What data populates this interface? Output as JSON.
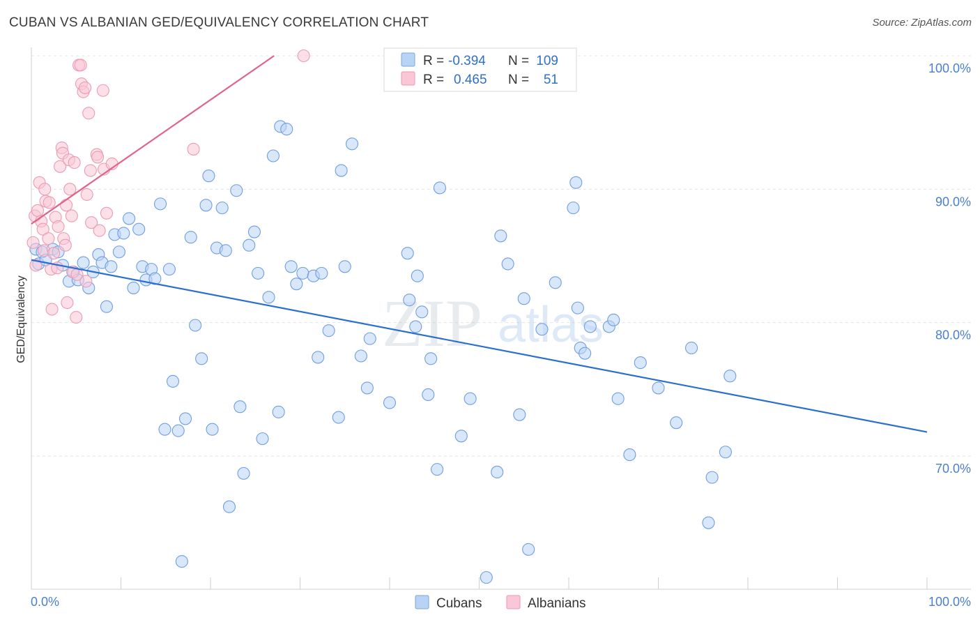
{
  "title": "CUBAN VS ALBANIAN GED/EQUIVALENCY CORRELATION CHART",
  "source": "Source: ZipAtlas.com",
  "watermark": {
    "zip": "ZIP",
    "atlas": "atlas"
  },
  "legend": {
    "r_label": "R =",
    "n_label": "N =",
    "rows": [
      {
        "name": "Cubans",
        "r": "-0.394",
        "n": "109",
        "fill": "#b9d3f5",
        "stroke": "#7aa6e0"
      },
      {
        "name": "Albanians",
        "r": "0.465",
        "n": "51",
        "fill": "#f9c7d6",
        "stroke": "#ec9ab3"
      }
    ]
  },
  "chart_data": {
    "type": "scatter",
    "title": "CUBAN VS ALBANIAN GED/EQUIVALENCY CORRELATION CHART",
    "xlabel": "",
    "ylabel": "GED/Equivalency",
    "xlim": [
      0,
      100
    ],
    "ylim": [
      60.5,
      101
    ],
    "x_tick_labels": [
      "0.0%",
      "100.0%"
    ],
    "y_ticks": [
      70,
      80,
      90,
      100
    ],
    "y_tick_labels": [
      "70.0%",
      "80.0%",
      "90.0%",
      "100.0%"
    ],
    "grid": true,
    "series": [
      {
        "name": "Cubans",
        "color": "#6f9ee0",
        "fill": "#b9d3f5",
        "trend": {
          "x": [
            0,
            100
          ],
          "y": [
            84.7,
            71.8
          ],
          "color": "#2a6fd0"
        },
        "points": [
          [
            0.5,
            85.5
          ],
          [
            0.8,
            84.4
          ],
          [
            1.2,
            85.3
          ],
          [
            1.6,
            84.7
          ],
          [
            2.4,
            85.5
          ],
          [
            3.0,
            85.3
          ],
          [
            3.5,
            84.3
          ],
          [
            4.2,
            83.1
          ],
          [
            4.7,
            83.8
          ],
          [
            5.2,
            83.2
          ],
          [
            5.8,
            84.5
          ],
          [
            6.4,
            82.6
          ],
          [
            6.9,
            83.8
          ],
          [
            7.5,
            85.1
          ],
          [
            7.9,
            84.5
          ],
          [
            8.4,
            81.2
          ],
          [
            8.9,
            84.2
          ],
          [
            9.3,
            86.6
          ],
          [
            9.8,
            85.3
          ],
          [
            10.3,
            86.7
          ],
          [
            10.9,
            87.8
          ],
          [
            11.4,
            82.6
          ],
          [
            12.0,
            87.0
          ],
          [
            12.4,
            84.2
          ],
          [
            12.8,
            83.2
          ],
          [
            13.4,
            84.0
          ],
          [
            13.8,
            83.3
          ],
          [
            14.4,
            88.9
          ],
          [
            14.9,
            72.0
          ],
          [
            15.4,
            84.0
          ],
          [
            15.8,
            75.6
          ],
          [
            16.4,
            71.9
          ],
          [
            16.8,
            62.1
          ],
          [
            17.2,
            72.8
          ],
          [
            17.8,
            86.4
          ],
          [
            18.3,
            79.8
          ],
          [
            19.0,
            77.3
          ],
          [
            19.5,
            88.8
          ],
          [
            19.8,
            91.0
          ],
          [
            20.2,
            72.0
          ],
          [
            20.7,
            85.6
          ],
          [
            21.3,
            88.6
          ],
          [
            21.7,
            85.4
          ],
          [
            22.1,
            66.2
          ],
          [
            22.9,
            89.9
          ],
          [
            23.3,
            73.7
          ],
          [
            23.7,
            68.7
          ],
          [
            24.3,
            85.8
          ],
          [
            24.9,
            86.8
          ],
          [
            25.3,
            83.7
          ],
          [
            25.8,
            71.3
          ],
          [
            26.5,
            81.9
          ],
          [
            27.0,
            92.5
          ],
          [
            27.6,
            73.3
          ],
          [
            27.8,
            94.7
          ],
          [
            28.5,
            94.5
          ],
          [
            29.0,
            84.2
          ],
          [
            29.6,
            82.9
          ],
          [
            30.3,
            83.7
          ],
          [
            31.5,
            83.5
          ],
          [
            32.0,
            77.4
          ],
          [
            32.4,
            83.7
          ],
          [
            33.2,
            79.4
          ],
          [
            34.3,
            72.9
          ],
          [
            34.6,
            91.4
          ],
          [
            35.0,
            84.2
          ],
          [
            35.8,
            93.4
          ],
          [
            36.8,
            77.5
          ],
          [
            37.5,
            75.1
          ],
          [
            37.8,
            78.8
          ],
          [
            40.0,
            74.0
          ],
          [
            42.0,
            85.2
          ],
          [
            42.2,
            81.7
          ],
          [
            42.9,
            79.7
          ],
          [
            43.1,
            83.5
          ],
          [
            43.6,
            80.8
          ],
          [
            44.3,
            74.6
          ],
          [
            44.6,
            77.3
          ],
          [
            45.3,
            69.0
          ],
          [
            45.6,
            90.1
          ],
          [
            48.0,
            71.5
          ],
          [
            49.0,
            74.3
          ],
          [
            52.0,
            68.8
          ],
          [
            52.4,
            86.5
          ],
          [
            53.2,
            84.4
          ],
          [
            54.5,
            73.1
          ],
          [
            55.0,
            81.8
          ],
          [
            55.5,
            63.0
          ],
          [
            57.0,
            79.5
          ],
          [
            58.5,
            83.0
          ],
          [
            60.5,
            88.6
          ],
          [
            60.8,
            90.5
          ],
          [
            61.0,
            81.1
          ],
          [
            61.3,
            78.1
          ],
          [
            61.8,
            77.7
          ],
          [
            62.4,
            79.7
          ],
          [
            64.5,
            79.7
          ],
          [
            65.0,
            80.2
          ],
          [
            65.5,
            74.3
          ],
          [
            66.8,
            70.1
          ],
          [
            68.0,
            77.0
          ],
          [
            70.0,
            75.1
          ],
          [
            72.0,
            72.5
          ],
          [
            73.7,
            78.1
          ],
          [
            75.6,
            65.0
          ],
          [
            76.0,
            68.4
          ],
          [
            77.5,
            70.3
          ],
          [
            78.0,
            76.0
          ],
          [
            50.8,
            60.9
          ]
        ]
      },
      {
        "name": "Albanians",
        "color": "#ec9ab3",
        "fill": "#f9c7d6",
        "trend": {
          "x": [
            0,
            27.1
          ],
          "y": [
            87.4,
            100.0
          ],
          "color": "#e0638c"
        },
        "points": [
          [
            0.2,
            86.0
          ],
          [
            0.4,
            88.0
          ],
          [
            0.5,
            84.3
          ],
          [
            0.7,
            88.4
          ],
          [
            0.9,
            90.5
          ],
          [
            1.1,
            87.6
          ],
          [
            1.3,
            87.0
          ],
          [
            1.4,
            85.4
          ],
          [
            1.5,
            90.0
          ],
          [
            1.6,
            89.1
          ],
          [
            1.9,
            86.3
          ],
          [
            2.0,
            89.0
          ],
          [
            2.2,
            84.0
          ],
          [
            2.3,
            81.0
          ],
          [
            2.5,
            85.2
          ],
          [
            2.7,
            87.9
          ],
          [
            2.9,
            84.1
          ],
          [
            3.0,
            87.2
          ],
          [
            3.2,
            91.7
          ],
          [
            3.4,
            93.1
          ],
          [
            3.5,
            92.7
          ],
          [
            3.6,
            86.3
          ],
          [
            3.8,
            85.8
          ],
          [
            3.9,
            88.8
          ],
          [
            4.0,
            81.5
          ],
          [
            4.2,
            92.2
          ],
          [
            4.3,
            90.0
          ],
          [
            4.5,
            88.0
          ],
          [
            4.6,
            83.8
          ],
          [
            4.8,
            92.0
          ],
          [
            5.0,
            80.4
          ],
          [
            5.1,
            83.6
          ],
          [
            5.3,
            99.3
          ],
          [
            5.5,
            99.3
          ],
          [
            5.6,
            97.9
          ],
          [
            5.8,
            97.3
          ],
          [
            6.0,
            97.6
          ],
          [
            6.1,
            83.1
          ],
          [
            6.2,
            89.6
          ],
          [
            6.4,
            95.7
          ],
          [
            6.6,
            91.4
          ],
          [
            6.7,
            87.5
          ],
          [
            7.3,
            92.6
          ],
          [
            7.4,
            92.4
          ],
          [
            7.6,
            86.9
          ],
          [
            8.0,
            97.4
          ],
          [
            8.1,
            91.5
          ],
          [
            8.4,
            88.2
          ],
          [
            9.0,
            91.9
          ],
          [
            18.1,
            93.0
          ],
          [
            30.4,
            100.0
          ]
        ]
      }
    ]
  },
  "bottom_legend": [
    {
      "label": "Cubans",
      "fill": "#b9d3f5",
      "stroke": "#7aa6e0"
    },
    {
      "label": "Albanians",
      "fill": "#f9c7d6",
      "stroke": "#ec9ab3"
    }
  ]
}
